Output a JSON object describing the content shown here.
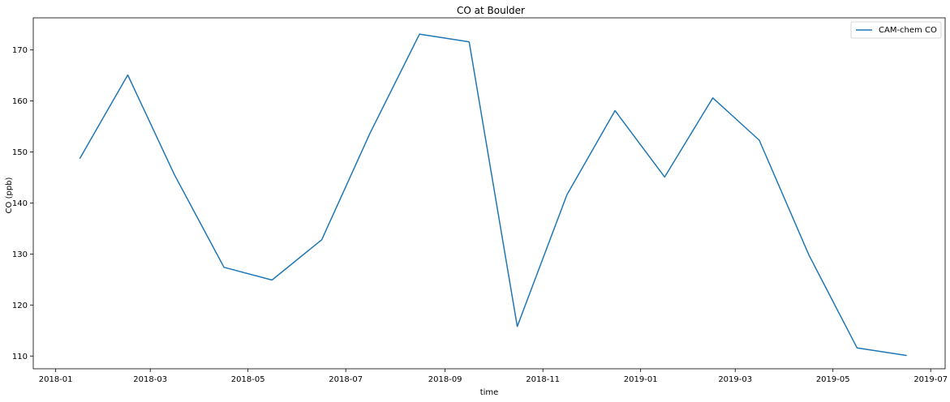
{
  "chart_data": {
    "type": "line",
    "title": "CO at Boulder",
    "xlabel": "time",
    "ylabel": "CO (ppb)",
    "xlim": [
      "2017-12-18",
      "2019-07-10"
    ],
    "ylim": [
      107.5,
      176.3
    ],
    "x_ticks": [
      "2018-01",
      "2018-03",
      "2018-05",
      "2018-07",
      "2018-09",
      "2018-11",
      "2019-01",
      "2019-03",
      "2019-05",
      "2019-07"
    ],
    "y_ticks": [
      110,
      120,
      130,
      140,
      150,
      160,
      170
    ],
    "grid": false,
    "legend_position": "top-right",
    "x": [
      "2018-01-16",
      "2018-02-15",
      "2018-03-16",
      "2018-04-16",
      "2018-05-16",
      "2018-06-16",
      "2018-07-16",
      "2018-08-16",
      "2018-09-16",
      "2018-10-16",
      "2018-11-16",
      "2018-12-16",
      "2019-01-16",
      "2019-02-15",
      "2019-03-16",
      "2019-04-16",
      "2019-05-16",
      "2019-06-16"
    ],
    "series": [
      {
        "name": "CAM-chem CO",
        "color": "#1f77b4",
        "values": [
          148.7,
          165.1,
          145.6,
          127.4,
          124.9,
          132.8,
          153.6,
          173.1,
          171.6,
          115.8,
          141.6,
          158.1,
          145.1,
          160.6,
          152.3,
          129.8,
          111.6,
          110.1
        ]
      }
    ]
  }
}
